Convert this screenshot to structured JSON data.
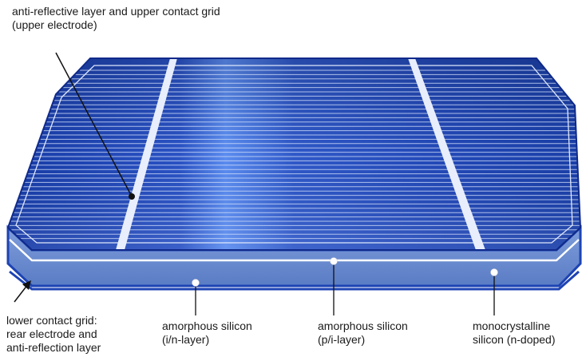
{
  "labels": {
    "top": {
      "line1": "anti-reflective layer and upper contact grid",
      "line2": "(upper electrode)"
    },
    "lower_grid": {
      "line1": "lower contact grid:",
      "line2": "rear electrode and",
      "line3": "anti-reflection layer"
    },
    "amorphous_in": {
      "line1": "amorphous silicon",
      "line2": "(i/n-layer)"
    },
    "amorphous_pi": {
      "line1": "amorphous silicon",
      "line2": "(p/i-layer)"
    },
    "mono": {
      "line1": "monocrystalline",
      "line2": "silicon (n-doped)"
    }
  },
  "colors": {
    "cell_top_dark": "#1d43b4",
    "cell_top_light": "#4a79e4",
    "side_layer": "#6d8fd0",
    "busbar": "#e8eefc",
    "outline": "#102a8a"
  },
  "components": [
    "solar-cell-top-surface",
    "busbar",
    "finger-grid",
    "cell-side-layers"
  ]
}
